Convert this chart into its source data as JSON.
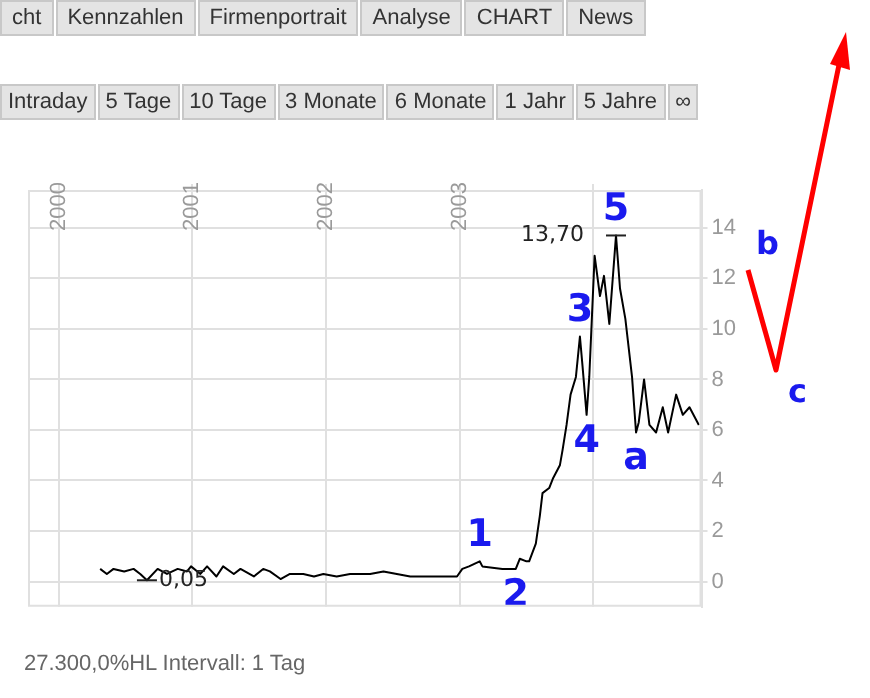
{
  "chart_data": {
    "type": "line",
    "x": [
      2000.31,
      2000.36,
      2000.41,
      2000.49,
      2000.56,
      2000.61,
      2000.66,
      2000.74,
      2000.81,
      2000.89,
      2000.96,
      2000.99,
      2001.06,
      2001.11,
      2001.18,
      2001.23,
      2001.31,
      2001.36,
      2001.46,
      2001.53,
      2001.58,
      2001.66,
      2001.73,
      2001.83,
      2001.91,
      2001.98,
      2002.08,
      2002.18,
      2002.33,
      2002.43,
      2002.53,
      2002.63,
      2002.78,
      2002.98,
      2003.02,
      2003.07,
      2003.15,
      2003.17,
      2003.32,
      2003.42,
      2003.45,
      2003.5,
      2003.52,
      2003.57,
      2003.6,
      2003.62,
      2003.67,
      2003.7,
      2003.75,
      2003.77,
      2003.8,
      2003.83,
      2003.87,
      2003.9,
      2003.92,
      2003.95,
      2003.97,
      2004.01,
      2004.05,
      2004.08,
      2004.12,
      2004.17,
      2004.2,
      2004.24,
      2004.29,
      2004.32,
      2004.34,
      2004.38,
      2004.42,
      2004.47,
      2004.52,
      2004.56,
      2004.62,
      2004.67,
      2004.72,
      2004.79
    ],
    "series": [
      {
        "color": "#000000",
        "values": [
          0.5,
          0.3,
          0.5,
          0.4,
          0.5,
          0.3,
          0.05,
          0.5,
          0.3,
          0.5,
          0.4,
          0.6,
          0.3,
          0.6,
          0.2,
          0.6,
          0.3,
          0.5,
          0.2,
          0.5,
          0.4,
          0.1,
          0.3,
          0.3,
          0.2,
          0.3,
          0.2,
          0.3,
          0.3,
          0.4,
          0.3,
          0.2,
          0.2,
          0.2,
          0.5,
          0.6,
          0.8,
          0.6,
          0.5,
          0.5,
          0.9,
          0.8,
          0.8,
          1.5,
          2.6,
          3.5,
          3.7,
          4.1,
          4.6,
          5.2,
          6.2,
          7.4,
          8.1,
          9.7,
          8.5,
          6.6,
          8.1,
          12.9,
          11.3,
          12.1,
          10.2,
          13.7,
          11.6,
          10.4,
          8.1,
          5.9,
          6.3,
          8.0,
          6.2,
          5.9,
          6.9,
          5.9,
          7.4,
          6.6,
          6.9,
          6.2
        ]
      }
    ],
    "xlim": [
      1999.77,
      2004.81
    ],
    "xticks": [
      {
        "value": 2000,
        "label": "2000"
      },
      {
        "value": 2001,
        "label": "2001"
      },
      {
        "value": 2002,
        "label": "2002"
      },
      {
        "value": 2003,
        "label": "2003"
      },
      {
        "value": 2004,
        "label": null
      }
    ],
    "ylim": [
      -1,
      15.5
    ],
    "yticks": [
      0,
      2,
      4,
      6,
      8,
      10,
      12,
      14
    ],
    "grid": true,
    "legend": false,
    "marker": "none",
    "line_style": "solid",
    "annotations": [
      "cht",
      "Kennzahlen",
      "Firmenportrait",
      "Analyse",
      "CHART",
      "News",
      "Intraday",
      "5 Tage",
      "10 Tage",
      "3 Monate",
      "6 Monate",
      "1 Jahr",
      "5 Jahre",
      "∞",
      "27.300,0%HL Intervall: 1 Tag",
      "b",
      "c",
      {
        "text": "1",
        "x": 2003.15,
        "y": 0.8
      },
      {
        "text": "2",
        "x": 2003.42,
        "y": 0.5
      },
      {
        "text": "3",
        "x": 2003.9,
        "y": 9.7
      },
      {
        "text": "4",
        "x": 2003.95,
        "y": 6.6
      },
      {
        "text": "5",
        "x": 2004.17,
        "y": 13.7
      },
      {
        "text": "a",
        "x": 2004.32,
        "y": 5.9
      },
      {
        "text": "13,70",
        "x": 2004.17,
        "y": 13.7
      },
      {
        "text": "0,05",
        "x": 2000.66,
        "y": 0.05
      }
    ]
  }
}
